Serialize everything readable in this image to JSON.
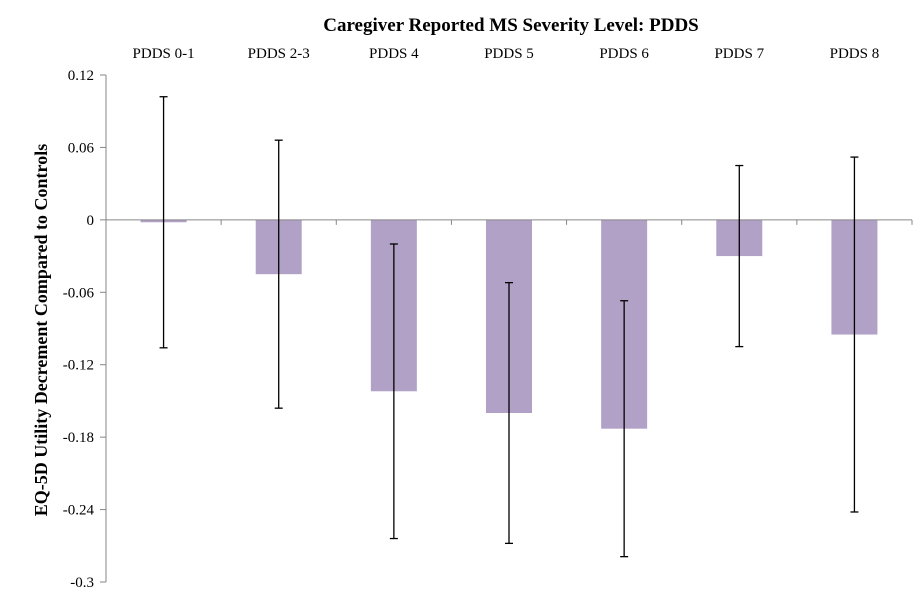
{
  "chart_data": {
    "type": "bar",
    "title": "Caregiver Reported MS Severity Level: PDDS",
    "xlabel": "",
    "ylabel": "EQ-5D Utility Decrement Compared to Controls",
    "categories": [
      "PDDS 0-1",
      "PDDS 2-3",
      "PDDS 4",
      "PDDS 5",
      "PDDS 6",
      "PDDS 7",
      "PDDS 8"
    ],
    "values": [
      -0.002,
      -0.045,
      -0.142,
      -0.16,
      -0.173,
      -0.03,
      -0.095
    ],
    "error_low": [
      -0.106,
      -0.156,
      -0.264,
      -0.268,
      -0.279,
      -0.105,
      -0.242
    ],
    "error_high": [
      0.102,
      0.066,
      -0.02,
      -0.052,
      -0.067,
      0.045,
      0.052
    ],
    "ylim": [
      -0.3,
      0.12
    ],
    "yticks": [
      0.12,
      0.06,
      0,
      -0.06,
      -0.12,
      -0.18,
      -0.24,
      -0.3
    ],
    "ytick_labels": [
      "0.12",
      "0.06",
      "0",
      "-0.06",
      "-0.12",
      "-0.18",
      "-0.24",
      "-0.3"
    ],
    "bar_color": "#b2a1c7",
    "error_color": "#000000",
    "grid": false,
    "legend": "none"
  }
}
